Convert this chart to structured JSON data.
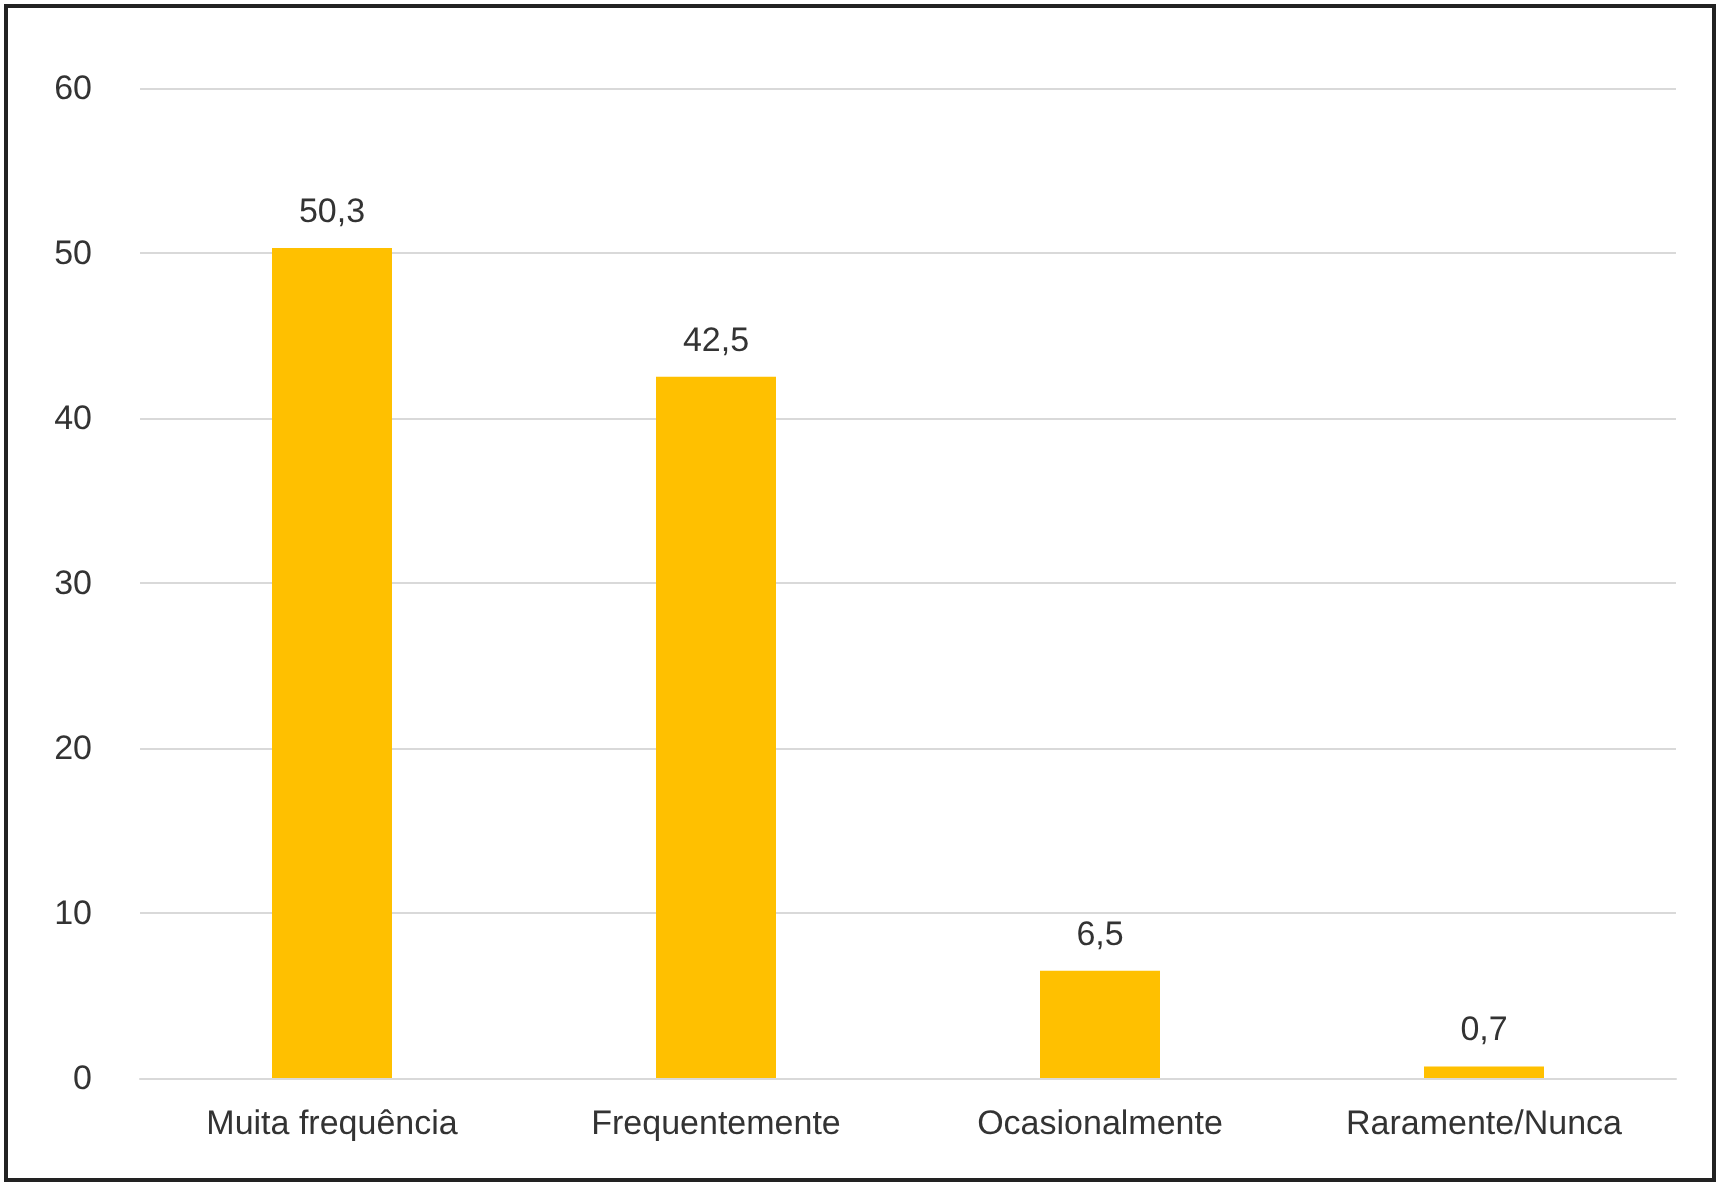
{
  "chart_data": {
    "type": "bar",
    "categories": [
      "Muita frequência",
      "Frequentemente",
      "Ocasionalmente",
      "Raramente/Nunca"
    ],
    "values": [
      50.3,
      42.5,
      6.5,
      0.7
    ],
    "value_labels": [
      "50,3",
      "42,5",
      "6,5",
      "0,7"
    ],
    "color": "#ffc000",
    "ylim": [
      0,
      60
    ],
    "yticks": [
      0,
      10,
      20,
      30,
      40,
      50,
      60
    ],
    "grid": "y"
  }
}
